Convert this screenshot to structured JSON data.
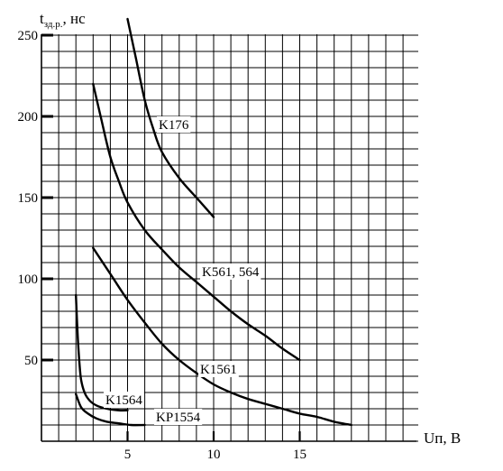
{
  "chart_data": {
    "type": "line",
    "title": "",
    "ylabel": {
      "main": "t",
      "sub": "зд.р.",
      "unit": ", нс"
    },
    "xlabel": "Uп, В",
    "xlim": [
      0,
      21
    ],
    "ylim": [
      0,
      250
    ],
    "x_ticks": [
      5,
      10,
      15
    ],
    "y_ticks": [
      50,
      100,
      150,
      200,
      250
    ],
    "grid": true,
    "series": [
      {
        "name": "K176",
        "x": [
          5,
          5.5,
          6,
          6.5,
          7,
          8,
          9,
          10
        ],
        "y": [
          260,
          235,
          210,
          192,
          178,
          162,
          150,
          138
        ]
      },
      {
        "name": "K561, 564",
        "x": [
          3,
          3.5,
          4,
          4.5,
          5,
          6,
          7,
          8,
          9,
          10,
          11,
          12,
          13,
          14,
          15
        ],
        "y": [
          220,
          197,
          175,
          160,
          147,
          130,
          118,
          107,
          98,
          89,
          80,
          72,
          65,
          57,
          50
        ]
      },
      {
        "name": "K1561",
        "x": [
          3,
          4,
          5,
          6,
          7,
          8,
          9,
          10,
          11,
          12,
          13,
          14,
          15,
          16,
          17,
          18
        ],
        "y": [
          119,
          103,
          87,
          73,
          60,
          50,
          42,
          35,
          30,
          26,
          23,
          20,
          17,
          15,
          12,
          10
        ]
      },
      {
        "name": "K1564",
        "x": [
          2,
          2.1,
          2.2,
          2.3,
          2.5,
          2.8,
          3.2,
          3.8,
          4.5,
          5
        ],
        "y": [
          90,
          66,
          49,
          38,
          30,
          25,
          22,
          20,
          19,
          19
        ]
      },
      {
        "name": "KP1554",
        "x": [
          2,
          2.3,
          2.7,
          3.2,
          3.8,
          4.5,
          5.2,
          6
        ],
        "y": [
          29,
          21,
          17,
          14,
          12,
          11,
          10,
          10
        ]
      }
    ]
  }
}
